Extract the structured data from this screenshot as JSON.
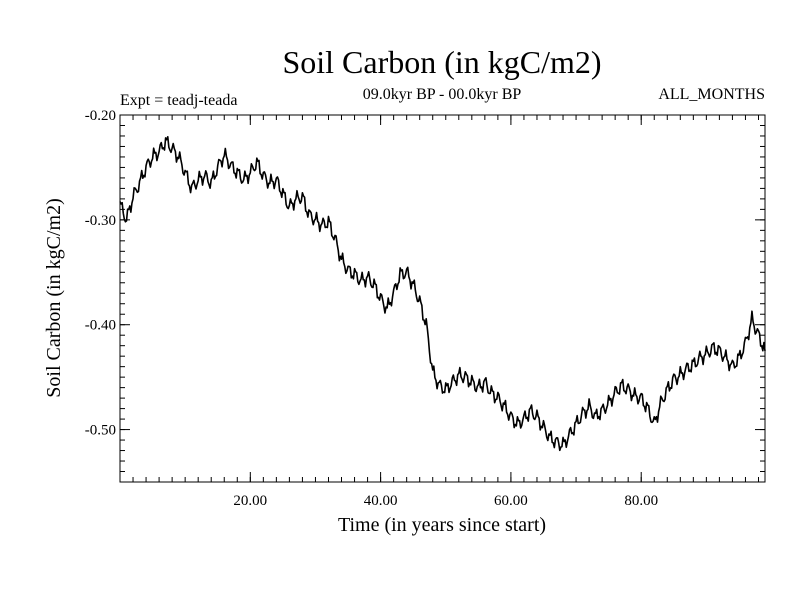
{
  "chart_data": {
    "type": "line",
    "title": "Soil Carbon (in kgC/m2)",
    "subtitle": "09.0kyr BP - 00.0kyr BP",
    "experiment_label": "Expt = teadj-teada",
    "period_label": "ALL_MONTHS",
    "xlabel": "Time (in years since start)",
    "ylabel": "Soil Carbon (in kgC/m2)",
    "xlim": [
      0,
      99
    ],
    "ylim": [
      -0.55,
      -0.2
    ],
    "x_ticks": [
      20,
      40,
      60,
      80
    ],
    "x_tick_labels": [
      "20.00",
      "40.00",
      "60.00",
      "80.00"
    ],
    "y_ticks": [
      -0.2,
      -0.3,
      -0.4,
      -0.5
    ],
    "y_tick_labels": [
      "-0.20",
      "-0.30",
      "-0.40",
      "-0.50"
    ],
    "x_minor_step": 2,
    "y_minor_step": 0.01,
    "series": [
      {
        "name": "Soil Carbon",
        "x": [
          0,
          1,
          2,
          3,
          4,
          5,
          6,
          7,
          8,
          9,
          10,
          11,
          12,
          13,
          14,
          15,
          16,
          17,
          18,
          19,
          20,
          21,
          22,
          23,
          24,
          25,
          26,
          27,
          28,
          29,
          30,
          31,
          32,
          33,
          34,
          35,
          36,
          37,
          38,
          39,
          40,
          41,
          42,
          43,
          44,
          45,
          46,
          47,
          48,
          49,
          50,
          51,
          52,
          53,
          54,
          55,
          56,
          57,
          58,
          59,
          60,
          61,
          62,
          63,
          64,
          65,
          66,
          67,
          68,
          69,
          70,
          71,
          72,
          73,
          74,
          75,
          76,
          77,
          78,
          79,
          80,
          81,
          82,
          83,
          84,
          85,
          86,
          87,
          88,
          89,
          90,
          91,
          92,
          93,
          94,
          95,
          96,
          97,
          98,
          99
        ],
        "y": [
          -0.285,
          -0.3,
          -0.278,
          -0.265,
          -0.25,
          -0.24,
          -0.235,
          -0.225,
          -0.232,
          -0.24,
          -0.255,
          -0.27,
          -0.262,
          -0.258,
          -0.265,
          -0.25,
          -0.238,
          -0.248,
          -0.255,
          -0.262,
          -0.255,
          -0.245,
          -0.258,
          -0.265,
          -0.262,
          -0.275,
          -0.288,
          -0.28,
          -0.278,
          -0.295,
          -0.3,
          -0.305,
          -0.302,
          -0.318,
          -0.338,
          -0.348,
          -0.352,
          -0.358,
          -0.355,
          -0.362,
          -0.375,
          -0.385,
          -0.37,
          -0.352,
          -0.35,
          -0.362,
          -0.378,
          -0.4,
          -0.445,
          -0.458,
          -0.462,
          -0.455,
          -0.448,
          -0.45,
          -0.455,
          -0.46,
          -0.455,
          -0.465,
          -0.47,
          -0.478,
          -0.488,
          -0.495,
          -0.49,
          -0.482,
          -0.488,
          -0.498,
          -0.508,
          -0.512,
          -0.515,
          -0.505,
          -0.495,
          -0.485,
          -0.478,
          -0.488,
          -0.482,
          -0.475,
          -0.465,
          -0.458,
          -0.462,
          -0.468,
          -0.47,
          -0.48,
          -0.495,
          -0.475,
          -0.462,
          -0.452,
          -0.448,
          -0.442,
          -0.438,
          -0.432,
          -0.428,
          -0.422,
          -0.425,
          -0.432,
          -0.44,
          -0.432,
          -0.418,
          -0.395,
          -0.41,
          -0.425
        ]
      }
    ]
  }
}
